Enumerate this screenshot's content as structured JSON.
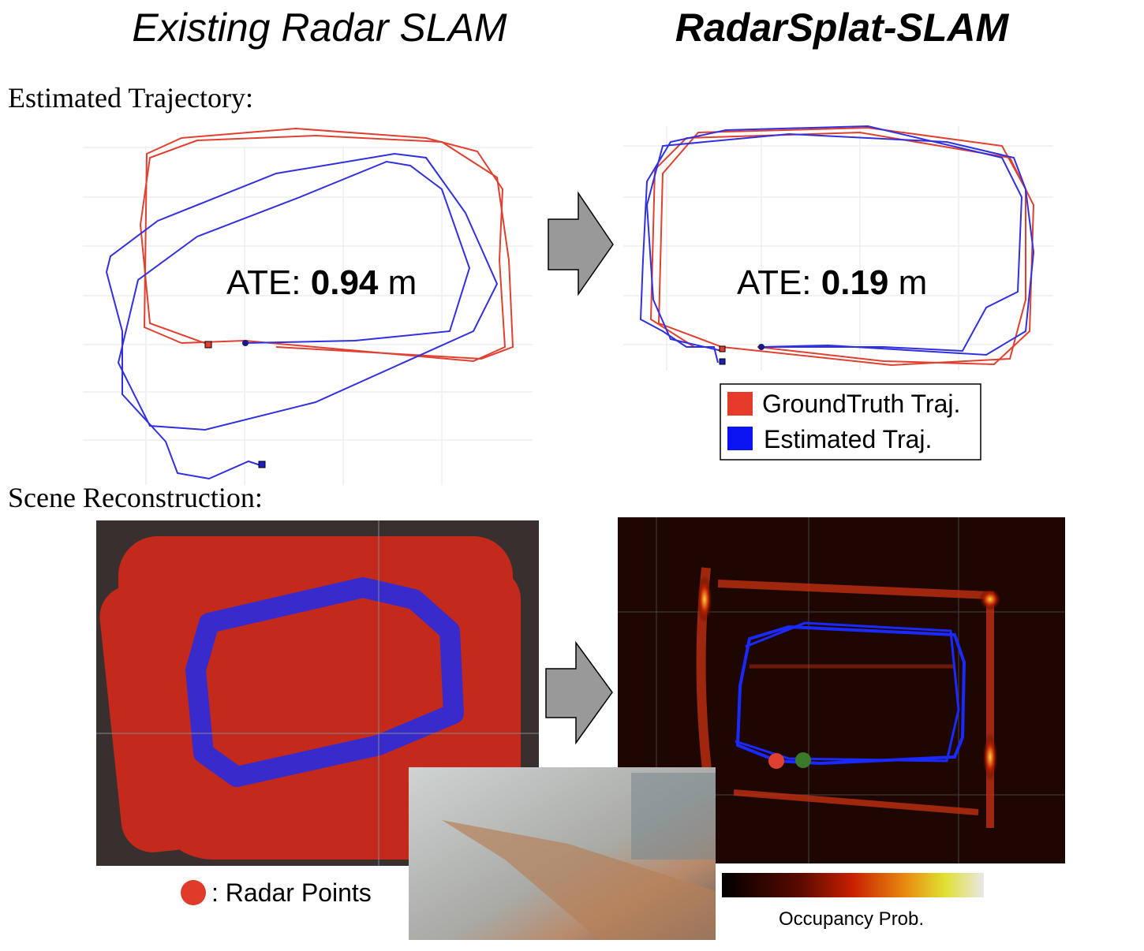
{
  "titles": {
    "left": "Existing Radar SLAM",
    "right": "RadarSplat-SLAM"
  },
  "trajectory": {
    "label": "Estimated Trajectory:",
    "left": {
      "ate_label": "ATE:",
      "ate_value": "0.94",
      "unit": "m"
    },
    "right": {
      "ate_label": "ATE:",
      "ate_value": "0.19",
      "unit": "m"
    },
    "legend": [
      "GroundTruth Traj.",
      "Estimated Traj."
    ]
  },
  "reconstruction": {
    "label": "Scene Reconstruction:",
    "radar_points": ": Radar Points",
    "colorbar_label": "Occupancy Prob."
  }
}
